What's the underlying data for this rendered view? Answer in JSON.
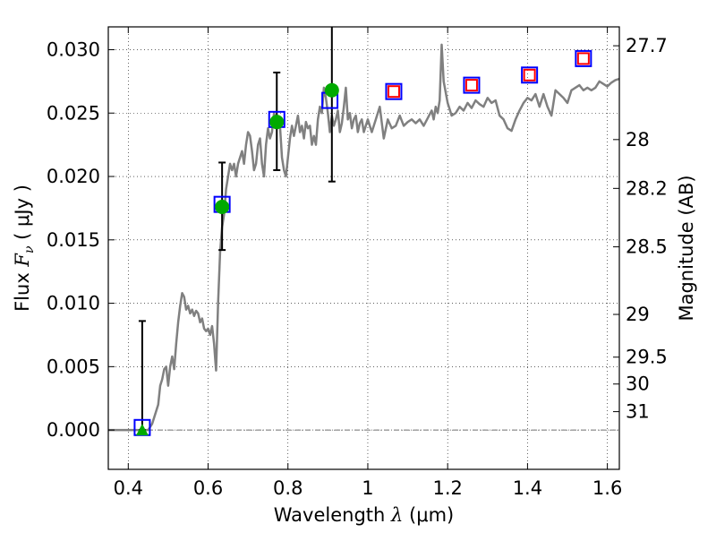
{
  "chart_data": {
    "type": "scatter",
    "xlabel": "Wavelength λ (μm)",
    "ylabel": "Flux F_ν ( μJy )",
    "ylabel_right": "Magnitude (AB)",
    "xlim": [
      0.35,
      1.63
    ],
    "ylim": [
      -0.0031,
      0.0318
    ],
    "grid": true,
    "x_ticks": [
      0.4,
      0.6,
      0.8,
      1.0,
      1.2,
      1.4,
      1.6
    ],
    "x_tick_labels": [
      "0.4",
      "0.6",
      "0.8",
      "1",
      "1.2",
      "1.4",
      "1.6"
    ],
    "y_ticks": [
      0.0,
      0.005,
      0.01,
      0.015,
      0.02,
      0.025,
      0.03
    ],
    "y_tick_labels": [
      "0.000",
      "0.005",
      "0.010",
      "0.015",
      "0.020",
      "0.025",
      "0.030"
    ],
    "right_ticks": [
      {
        "label": "27.7",
        "flux": 0.03031
      },
      {
        "label": "28",
        "flux": 0.02291
      },
      {
        "label": "28.2",
        "flux": 0.01906
      },
      {
        "label": "28.5",
        "flux": 0.01445
      },
      {
        "label": "29",
        "flux": 0.00912
      },
      {
        "label": "29.5",
        "flux": 0.00575
      },
      {
        "label": "30",
        "flux": 0.00363
      },
      {
        "label": "31",
        "flux": 0.00145
      }
    ],
    "series": [
      {
        "type": "line",
        "color": "#808080",
        "x": [
          0.35,
          0.44,
          0.45,
          0.46,
          0.47,
          0.475,
          0.48,
          0.485,
          0.49,
          0.495,
          0.5,
          0.505,
          0.51,
          0.515,
          0.52,
          0.525,
          0.53,
          0.535,
          0.54,
          0.545,
          0.55,
          0.555,
          0.56,
          0.565,
          0.57,
          0.575,
          0.58,
          0.585,
          0.59,
          0.595,
          0.6,
          0.605,
          0.61,
          0.615,
          0.618,
          0.62,
          0.625,
          0.63,
          0.635,
          0.64,
          0.645,
          0.65,
          0.655,
          0.66,
          0.665,
          0.67,
          0.675,
          0.68,
          0.685,
          0.69,
          0.695,
          0.7,
          0.705,
          0.71,
          0.715,
          0.72,
          0.725,
          0.73,
          0.735,
          0.74,
          0.745,
          0.75,
          0.755,
          0.76,
          0.765,
          0.77,
          0.775,
          0.78,
          0.785,
          0.79,
          0.795,
          0.8,
          0.805,
          0.81,
          0.815,
          0.82,
          0.825,
          0.83,
          0.835,
          0.84,
          0.845,
          0.85,
          0.855,
          0.86,
          0.865,
          0.87,
          0.875,
          0.88,
          0.885,
          0.89,
          0.895,
          0.9,
          0.905,
          0.91,
          0.915,
          0.92,
          0.925,
          0.93,
          0.935,
          0.94,
          0.945,
          0.95,
          0.955,
          0.96,
          0.965,
          0.97,
          0.975,
          0.98,
          0.985,
          0.99,
          0.995,
          1.0,
          1.01,
          1.02,
          1.03,
          1.04,
          1.05,
          1.06,
          1.07,
          1.08,
          1.09,
          1.1,
          1.11,
          1.12,
          1.13,
          1.14,
          1.15,
          1.16,
          1.165,
          1.17,
          1.175,
          1.18,
          1.185,
          1.19,
          1.2,
          1.21,
          1.22,
          1.23,
          1.24,
          1.25,
          1.26,
          1.27,
          1.28,
          1.29,
          1.3,
          1.31,
          1.32,
          1.33,
          1.34,
          1.35,
          1.36,
          1.37,
          1.38,
          1.39,
          1.4,
          1.41,
          1.42,
          1.43,
          1.44,
          1.45,
          1.46,
          1.47,
          1.48,
          1.49,
          1.5,
          1.51,
          1.52,
          1.53,
          1.54,
          1.55,
          1.56,
          1.57,
          1.58,
          1.59,
          1.6,
          1.61,
          1.62,
          1.63
        ],
        "y": [
          0.0,
          0.0,
          0.0,
          0.0005,
          0.0015,
          0.002,
          0.0035,
          0.004,
          0.0048,
          0.005,
          0.0035,
          0.005,
          0.0058,
          0.0048,
          0.0068,
          0.0085,
          0.0098,
          0.0108,
          0.0105,
          0.0095,
          0.0098,
          0.0092,
          0.0095,
          0.009,
          0.0094,
          0.0092,
          0.0085,
          0.0088,
          0.008,
          0.0078,
          0.008,
          0.0075,
          0.0082,
          0.0068,
          0.0055,
          0.0047,
          0.01,
          0.014,
          0.016,
          0.017,
          0.019,
          0.02,
          0.021,
          0.0205,
          0.021,
          0.02,
          0.021,
          0.0215,
          0.022,
          0.021,
          0.0225,
          0.0235,
          0.0232,
          0.022,
          0.0205,
          0.021,
          0.0225,
          0.023,
          0.021,
          0.02,
          0.0225,
          0.0238,
          0.023,
          0.0235,
          0.025,
          0.0245,
          0.0242,
          0.024,
          0.0215,
          0.0205,
          0.02,
          0.0215,
          0.023,
          0.024,
          0.0232,
          0.024,
          0.0248,
          0.0235,
          0.024,
          0.023,
          0.0243,
          0.0238,
          0.024,
          0.0225,
          0.0232,
          0.0225,
          0.0245,
          0.0255,
          0.025,
          0.027,
          0.0262,
          0.025,
          0.0235,
          0.0248,
          0.024,
          0.0245,
          0.0252,
          0.0235,
          0.0242,
          0.0255,
          0.027,
          0.0245,
          0.025,
          0.0238,
          0.0245,
          0.0248,
          0.0235,
          0.0242,
          0.0245,
          0.0235,
          0.024,
          0.0245,
          0.0235,
          0.0245,
          0.0255,
          0.023,
          0.0245,
          0.0238,
          0.024,
          0.0248,
          0.024,
          0.0243,
          0.0245,
          0.0242,
          0.0245,
          0.024,
          0.0246,
          0.0252,
          0.0245,
          0.0255,
          0.025,
          0.026,
          0.0304,
          0.0275,
          0.0258,
          0.0248,
          0.025,
          0.0255,
          0.0252,
          0.0258,
          0.0254,
          0.026,
          0.0257,
          0.0255,
          0.0262,
          0.0258,
          0.026,
          0.0248,
          0.0245,
          0.0238,
          0.0236,
          0.0245,
          0.0252,
          0.0258,
          0.0262,
          0.026,
          0.0265,
          0.0255,
          0.0265,
          0.0255,
          0.0248,
          0.0268,
          0.0265,
          0.0262,
          0.0258,
          0.0268,
          0.027,
          0.0272,
          0.0268,
          0.027,
          0.0268,
          0.027,
          0.0275,
          0.0273,
          0.0271,
          0.0274,
          0.0276,
          0.0277
        ]
      },
      {
        "type": "scatter",
        "marker": "square-open",
        "color": "#0000ff",
        "x": [
          0.435,
          0.635,
          0.772,
          0.905,
          1.065,
          1.26,
          1.405,
          1.54
        ],
        "y": [
          0.0002,
          0.0178,
          0.0245,
          0.026,
          0.0267,
          0.0272,
          0.028,
          0.0293
        ]
      },
      {
        "type": "scatter",
        "marker": "square-open",
        "color": "#ff0000",
        "x": [
          1.065,
          1.26,
          1.405,
          1.54
        ],
        "y": [
          0.0267,
          0.0272,
          0.028,
          0.0293
        ]
      },
      {
        "type": "scatter",
        "marker": "circle",
        "color": "#00aa00",
        "x": [
          0.435,
          0.635,
          0.772,
          0.91
        ],
        "y": [
          0.0,
          0.0176,
          0.0243,
          0.0268
        ],
        "yerr_low": [
          0.0,
          0.0034,
          0.0038,
          0.0072
        ],
        "yerr_high": [
          0.0086,
          0.0035,
          0.0039,
          0.0055
        ]
      },
      {
        "type": "hline",
        "color": "#707070",
        "y": 0.0
      }
    ]
  }
}
